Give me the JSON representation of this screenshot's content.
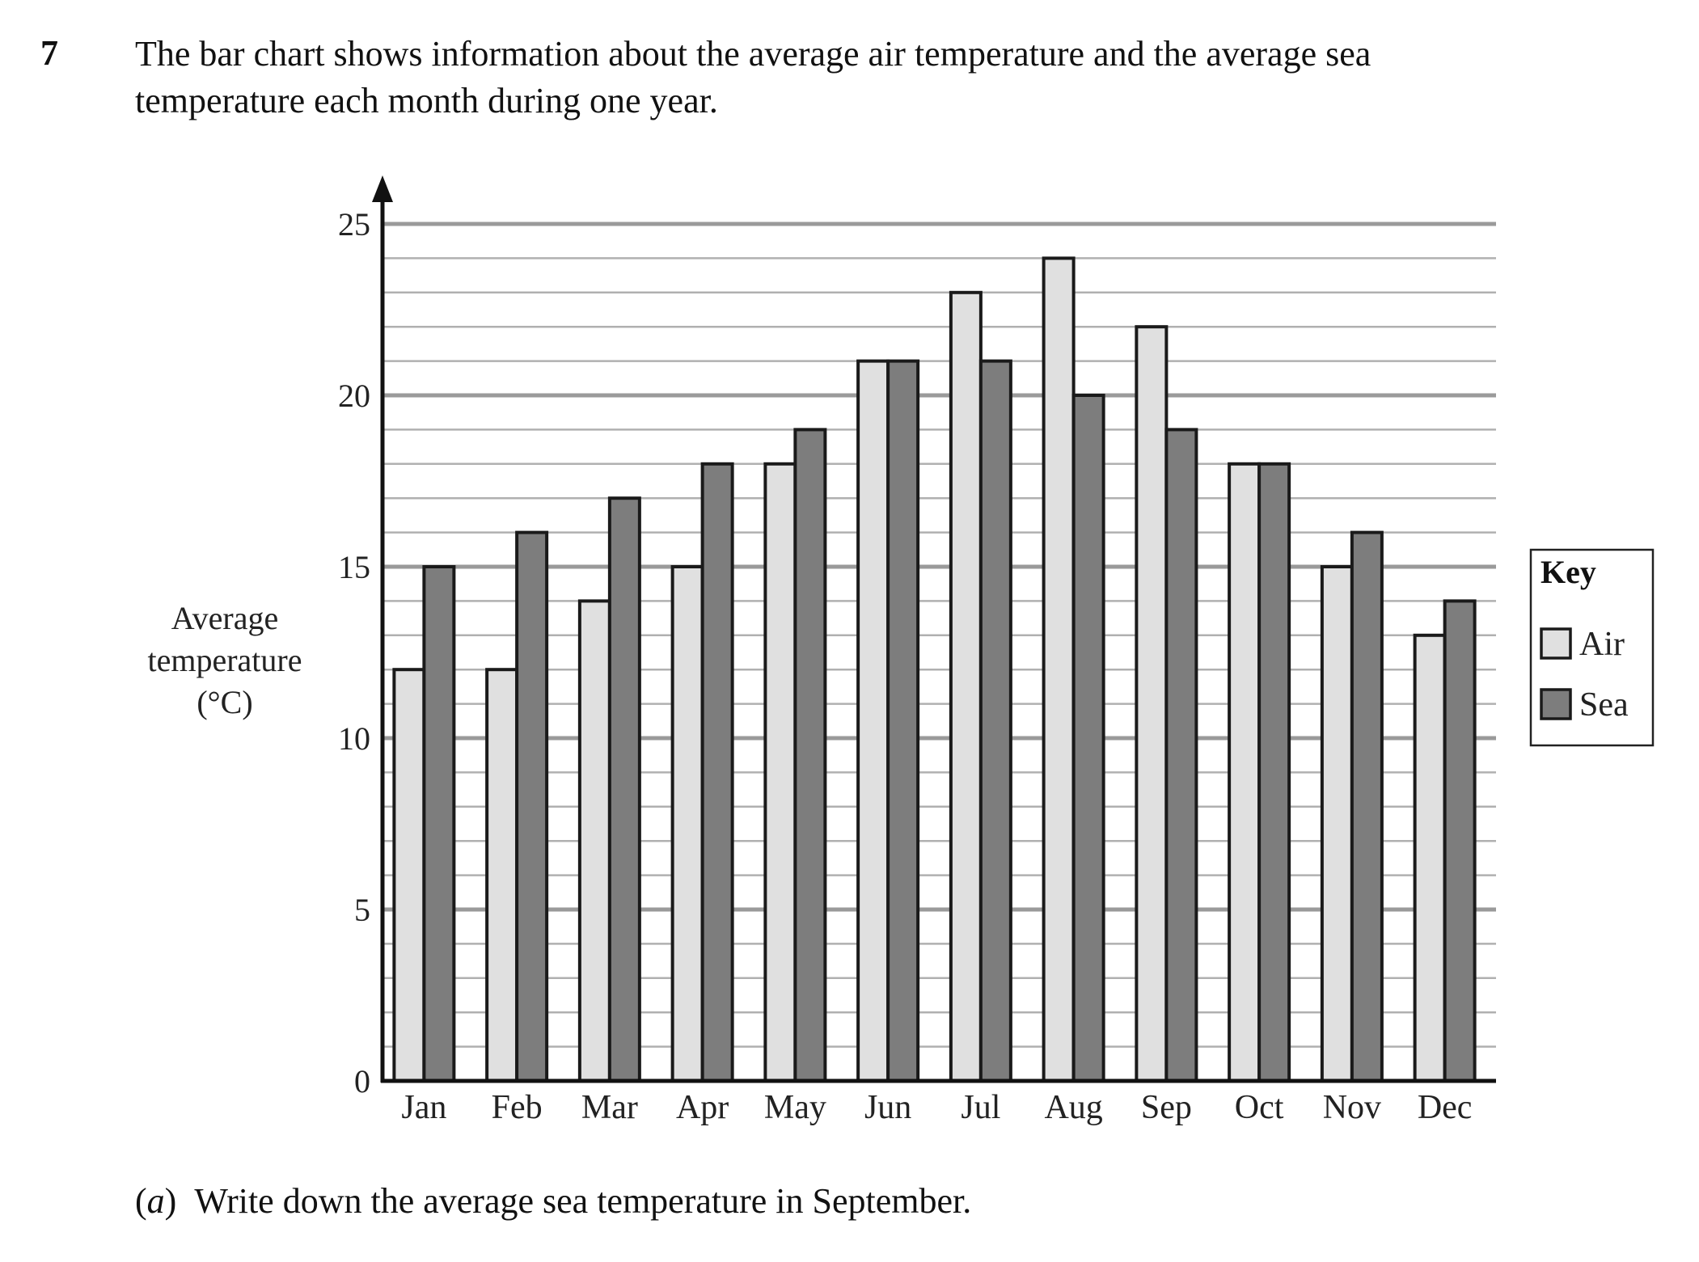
{
  "question": {
    "number": "7",
    "text_line1": "The bar chart shows information about the average air temperature and the average sea",
    "text_line2": "temperature each month during one year."
  },
  "part_a": {
    "label_open": "(",
    "label": "a",
    "label_close": ")",
    "text": "Write down the average sea temperature in September."
  },
  "chart_data": {
    "type": "bar",
    "title": "",
    "ylabel_lines": [
      "Average",
      "temperature",
      "(°C)"
    ],
    "xlabel": "",
    "categories": [
      "Jan",
      "Feb",
      "Mar",
      "Apr",
      "May",
      "Jun",
      "Jul",
      "Aug",
      "Sep",
      "Oct",
      "Nov",
      "Dec"
    ],
    "series": [
      {
        "name": "Air",
        "values": [
          12,
          12,
          14,
          15,
          18,
          21,
          23,
          24,
          22,
          18,
          15,
          13
        ],
        "color": "#e0e0e0"
      },
      {
        "name": "Sea",
        "values": [
          15,
          16,
          17,
          18,
          19,
          21,
          21,
          20,
          19,
          18,
          16,
          14
        ],
        "color": "#7d7d7d"
      }
    ],
    "ylim": [
      0,
      25
    ],
    "yticks": [
      0,
      5,
      10,
      15,
      20,
      25
    ],
    "minor_gridline_step": 1,
    "grid": true,
    "legend": {
      "title": "Key",
      "placement": "right"
    }
  }
}
